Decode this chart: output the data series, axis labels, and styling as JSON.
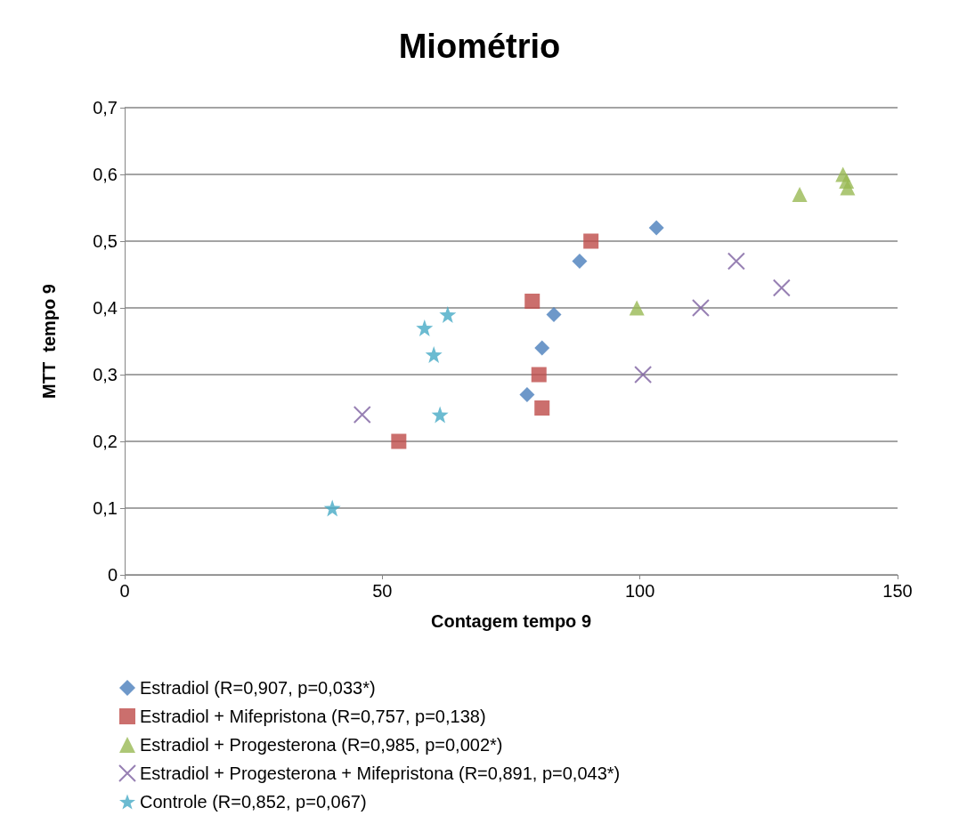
{
  "chart_data": {
    "type": "scatter",
    "title": "Miométrio",
    "xlabel": "Contagem tempo 9",
    "ylabel": "MTT  tempo 9",
    "xlim": [
      0,
      150
    ],
    "xticks": [
      0,
      50,
      100,
      150
    ],
    "ylim": [
      0,
      0.7
    ],
    "yticks": [
      {
        "value": 0,
        "label": "0"
      },
      {
        "value": 0.1,
        "label": "0,1"
      },
      {
        "value": 0.2,
        "label": "0,2"
      },
      {
        "value": 0.3,
        "label": "0,3"
      },
      {
        "value": 0.4,
        "label": "0,4"
      },
      {
        "value": 0.5,
        "label": "0,5"
      },
      {
        "value": 0.6,
        "label": "0,6"
      },
      {
        "value": 0.7,
        "label": "0,7"
      }
    ],
    "grid": "y",
    "legend": "bottom",
    "series": [
      {
        "name": "Estradiol (R=0,907, p=0,033*)",
        "color": "#4a7ebb",
        "marker": "diamond",
        "x": [
          78.1,
          81.0,
          83.3,
          88.3,
          103.2
        ],
        "values": [
          0.27,
          0.34,
          0.39,
          0.47,
          0.52
        ]
      },
      {
        "name": "Estradiol + Mifepristona (R=0,757, p=0,138)",
        "color": "#be4b48",
        "marker": "square",
        "x": [
          53.2,
          79.1,
          80.4,
          81.0,
          90.5
        ],
        "values": [
          0.2,
          0.41,
          0.3,
          0.25,
          0.5
        ]
      },
      {
        "name": "Estradiol + Progesterona (R=0,985, p=0,002*)",
        "color": "#98b954",
        "marker": "triangle",
        "x": [
          99.4,
          131.0,
          139.4,
          140.1,
          140.3
        ],
        "values": [
          0.4,
          0.57,
          0.6,
          0.59,
          0.58
        ]
      },
      {
        "name": "Estradiol + Progesterona + Mifepristona (R=0,891, p=0,043*)",
        "color": "#7d60a0",
        "marker": "cross",
        "x": [
          46.1,
          100.6,
          111.8,
          118.7,
          127.5
        ],
        "values": [
          0.24,
          0.3,
          0.4,
          0.47,
          0.43
        ]
      },
      {
        "name": "Controle (R=0,852, p=0,067)",
        "color": "#46aac5",
        "marker": "star",
        "x": [
          40.3,
          58.2,
          60.0,
          61.2,
          62.7
        ],
        "values": [
          0.1,
          0.37,
          0.33,
          0.24,
          0.39
        ]
      }
    ]
  }
}
